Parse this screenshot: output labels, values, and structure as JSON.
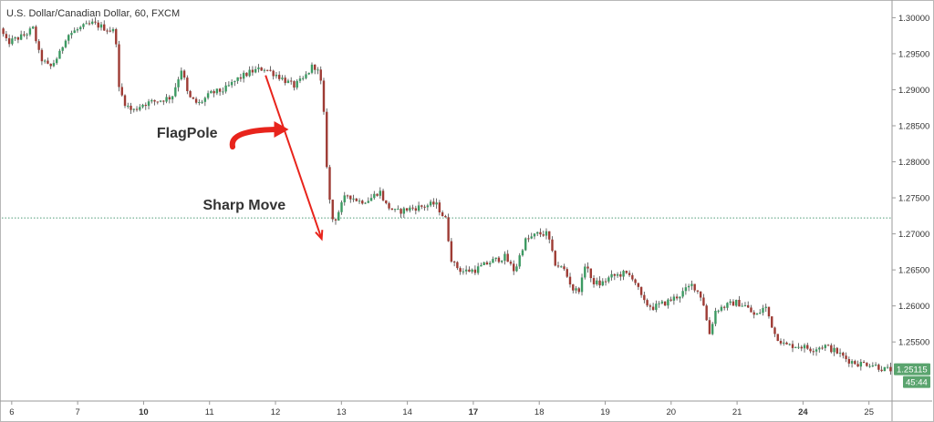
{
  "colors": {
    "up": "#3c9a62",
    "down": "#9e3b34",
    "wick": "#444444",
    "arrow": "#e8241c",
    "hline": "#4f9c78",
    "tag_bg": "#5aa46e"
  },
  "chart_data": {
    "type": "candlestick",
    "title": "U.S. Dollar/Canadian Dollar, 60, FXCM",
    "xlabel": "",
    "ylabel": "",
    "ylim": [
      1.2468,
      1.3022
    ],
    "x_ticks": [
      {
        "label": "6",
        "pos": 0.15,
        "bold": false
      },
      {
        "label": "7",
        "pos": 1.15,
        "bold": false
      },
      {
        "label": "10",
        "pos": 2.15,
        "bold": true
      },
      {
        "label": "11",
        "pos": 3.15,
        "bold": false
      },
      {
        "label": "12",
        "pos": 4.15,
        "bold": false
      },
      {
        "label": "13",
        "pos": 5.15,
        "bold": false
      },
      {
        "label": "14",
        "pos": 6.15,
        "bold": false
      },
      {
        "label": "17",
        "pos": 7.15,
        "bold": true
      },
      {
        "label": "18",
        "pos": 8.15,
        "bold": false
      },
      {
        "label": "19",
        "pos": 9.15,
        "bold": false
      },
      {
        "label": "20",
        "pos": 10.15,
        "bold": false
      },
      {
        "label": "21",
        "pos": 11.15,
        "bold": false
      },
      {
        "label": "24",
        "pos": 12.15,
        "bold": true
      },
      {
        "label": "25",
        "pos": 13.15,
        "bold": false
      }
    ],
    "y_ticks": [
      "1.30000",
      "1.29500",
      "1.29000",
      "1.28500",
      "1.28000",
      "1.27500",
      "1.27000",
      "1.26500",
      "1.26000",
      "1.25500"
    ],
    "y_tick_values": [
      1.3,
      1.295,
      1.29,
      1.285,
      1.28,
      1.275,
      1.27,
      1.265,
      1.26,
      1.255
    ],
    "horizontal_line": 1.2722,
    "last_price": "1.25115",
    "countdown": "45:44",
    "path_points": [
      [
        0.0,
        1.2985
      ],
      [
        0.1,
        1.2965
      ],
      [
        0.35,
        1.2975
      ],
      [
        0.5,
        1.2985
      ],
      [
        0.6,
        1.2945
      ],
      [
        0.75,
        1.293
      ],
      [
        0.9,
        1.295
      ],
      [
        1.0,
        1.2975
      ],
      [
        1.2,
        1.2985
      ],
      [
        1.4,
        1.2992
      ],
      [
        1.6,
        1.2985
      ],
      [
        1.75,
        1.298
      ],
      [
        1.78,
        1.2905
      ],
      [
        1.9,
        1.288
      ],
      [
        2.0,
        1.287
      ],
      [
        2.15,
        1.288
      ],
      [
        2.4,
        1.2885
      ],
      [
        2.6,
        1.289
      ],
      [
        2.75,
        1.293
      ],
      [
        2.85,
        1.289
      ],
      [
        3.0,
        1.288
      ],
      [
        3.2,
        1.2895
      ],
      [
        3.4,
        1.29
      ],
      [
        3.6,
        1.2915
      ],
      [
        3.8,
        1.2925
      ],
      [
        4.0,
        1.293
      ],
      [
        4.2,
        1.292
      ],
      [
        4.45,
        1.2905
      ],
      [
        4.6,
        1.2915
      ],
      [
        4.75,
        1.2935
      ],
      [
        4.85,
        1.292
      ],
      [
        4.92,
        1.285
      ],
      [
        4.97,
        1.276
      ],
      [
        5.05,
        1.2715
      ],
      [
        5.15,
        1.2735
      ],
      [
        5.25,
        1.2755
      ],
      [
        5.45,
        1.2745
      ],
      [
        5.6,
        1.2748
      ],
      [
        5.75,
        1.276
      ],
      [
        5.85,
        1.274
      ],
      [
        6.0,
        1.273
      ],
      [
        6.2,
        1.2735
      ],
      [
        6.4,
        1.2738
      ],
      [
        6.6,
        1.2742
      ],
      [
        6.75,
        1.272
      ],
      [
        6.85,
        1.266
      ],
      [
        7.0,
        1.2648
      ],
      [
        7.2,
        1.265
      ],
      [
        7.45,
        1.2662
      ],
      [
        7.65,
        1.2668
      ],
      [
        7.8,
        1.2648
      ],
      [
        7.95,
        1.269
      ],
      [
        8.15,
        1.27
      ],
      [
        8.3,
        1.27
      ],
      [
        8.4,
        1.266
      ],
      [
        8.55,
        1.265
      ],
      [
        8.7,
        1.262
      ],
      [
        8.8,
        1.2625
      ],
      [
        8.88,
        1.2665
      ],
      [
        8.95,
        1.2635
      ],
      [
        9.1,
        1.263
      ],
      [
        9.25,
        1.264
      ],
      [
        9.45,
        1.2645
      ],
      [
        9.6,
        1.264
      ],
      [
        9.75,
        1.2605
      ],
      [
        9.9,
        1.2598
      ],
      [
        10.1,
        1.2605
      ],
      [
        10.3,
        1.2615
      ],
      [
        10.5,
        1.263
      ],
      [
        10.65,
        1.261
      ],
      [
        10.75,
        1.256
      ],
      [
        10.85,
        1.2595
      ],
      [
        11.0,
        1.26
      ],
      [
        11.15,
        1.2605
      ],
      [
        11.3,
        1.26
      ],
      [
        11.45,
        1.2585
      ],
      [
        11.6,
        1.26
      ],
      [
        11.75,
        1.256
      ],
      [
        11.9,
        1.2545
      ],
      [
        12.1,
        1.2545
      ],
      [
        12.3,
        1.254
      ],
      [
        12.5,
        1.2545
      ],
      [
        12.7,
        1.2535
      ],
      [
        12.85,
        1.2525
      ],
      [
        13.0,
        1.252
      ],
      [
        13.2,
        1.252
      ],
      [
        13.4,
        1.2512
      ],
      [
        13.5,
        1.25115
      ]
    ],
    "annotations": [
      {
        "text": "FlagPole",
        "value_x": 2.35,
        "value_y": 1.284
      },
      {
        "text": "Sharp Move",
        "value_x": 3.05,
        "value_y": 1.274
      }
    ],
    "arrow": {
      "from": [
        4.0,
        1.292
      ],
      "to": [
        4.85,
        1.2693
      ]
    },
    "curved_arrow": {
      "from": [
        3.5,
        1.2836
      ],
      "to": [
        4.35,
        1.2845
      ]
    }
  }
}
